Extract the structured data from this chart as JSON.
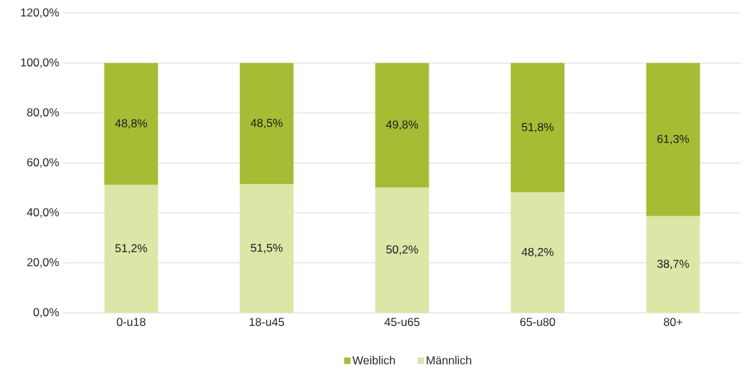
{
  "chart_data": {
    "type": "bar",
    "stacked": true,
    "categories": [
      "0-u18",
      "18-u45",
      "45-u65",
      "65-u80",
      "80+"
    ],
    "series": [
      {
        "name": "Männlich",
        "color": "#dce6a7",
        "values": [
          51.2,
          51.5,
          50.2,
          48.2,
          38.7
        ],
        "value_labels": [
          "51,2%",
          "51,5%",
          "50,2%",
          "48,2%",
          "38,7%"
        ]
      },
      {
        "name": "Weiblich",
        "color": "#a8bb34",
        "values": [
          48.8,
          48.5,
          49.8,
          51.8,
          61.3
        ],
        "value_labels": [
          "48,8%",
          "48,5%",
          "49,8%",
          "51,8%",
          "61,3%"
        ]
      }
    ],
    "ylim": [
      0,
      120
    ],
    "yticks": [
      {
        "value": 0,
        "label": "0,0%"
      },
      {
        "value": 20,
        "label": "20,0%"
      },
      {
        "value": 40,
        "label": "40,0%"
      },
      {
        "value": 60,
        "label": "60,0%"
      },
      {
        "value": 80,
        "label": "80,0%"
      },
      {
        "value": 100,
        "label": "100,0%"
      },
      {
        "value": 120,
        "label": "120,0%"
      }
    ],
    "grid": "y",
    "legend": "bottom"
  }
}
